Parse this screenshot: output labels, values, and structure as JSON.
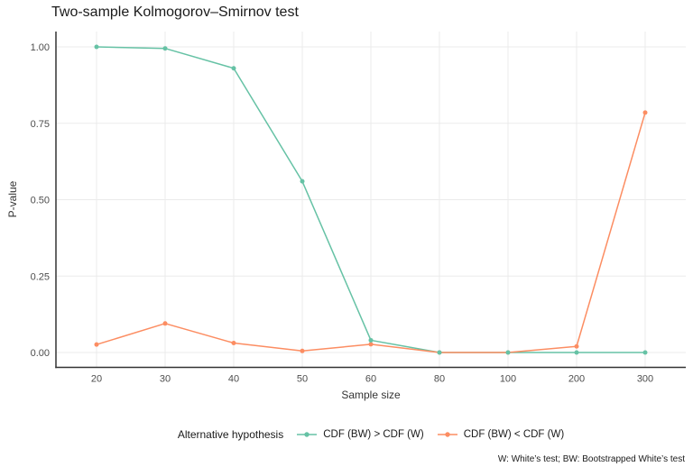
{
  "chart_data": {
    "type": "line",
    "title": "Two-sample Kolmogorov–Smirnov test",
    "xlabel": "Sample size",
    "ylabel": "P-value",
    "caption": "W: White’s test; BW: Bootstrapped White’s test",
    "legend_title": "Alternative hypothesis",
    "legend_position": "bottom",
    "grid": true,
    "categories": [
      "20",
      "30",
      "40",
      "50",
      "60",
      "80",
      "100",
      "200",
      "300"
    ],
    "y_tick_labels": [
      "0.00",
      "0.25",
      "0.50",
      "0.75",
      "1.00"
    ],
    "y_tick_values": [
      0,
      0.25,
      0.5,
      0.75,
      1.0
    ],
    "ylim": [
      0,
      1
    ],
    "series": [
      {
        "name": "CDF (BW) > CDF (W)",
        "color": "#66C2A5",
        "values": [
          1.0,
          0.995,
          0.93,
          0.56,
          0.04,
          0.0,
          0.0,
          0.0,
          0.0
        ]
      },
      {
        "name": "CDF (BW) < CDF (W)",
        "color": "#FC8D62",
        "values": [
          0.026,
          0.095,
          0.031,
          0.005,
          0.027,
          0.0,
          0.0,
          0.02,
          0.785
        ]
      }
    ]
  },
  "colors": {
    "grid": "#EBEBEB",
    "axis": "#333333",
    "tick_text": "#4D4D4D"
  }
}
